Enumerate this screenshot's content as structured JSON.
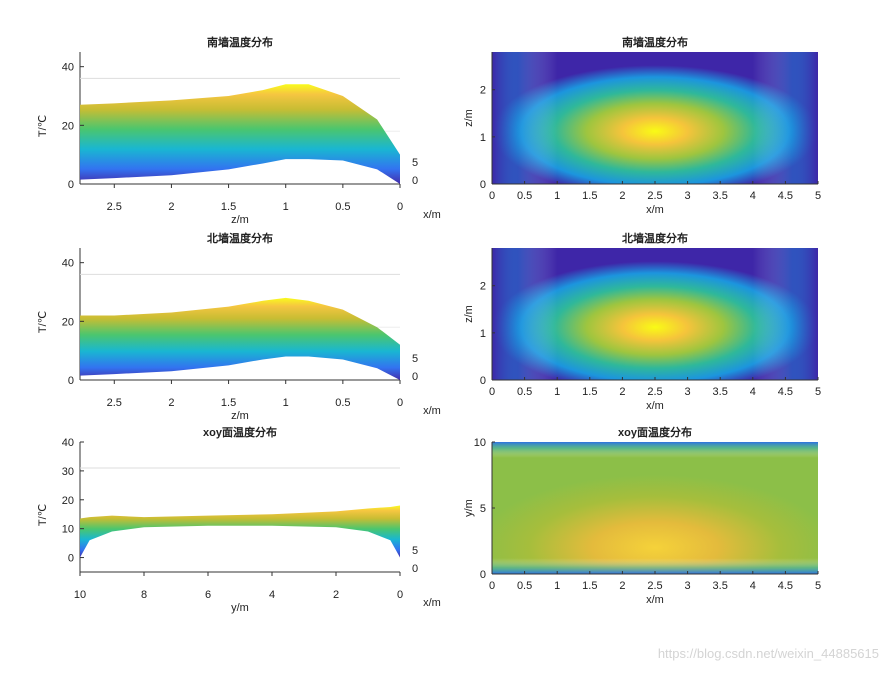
{
  "watermark": "https://blog.csdn.net/weixin_44885615",
  "chart_data": [
    {
      "type": "surface",
      "title": "南墙温度分布",
      "xlabel": "z/m",
      "ylabel": "T/℃",
      "depth_label": "x/m",
      "x_ticks": [
        "2.5",
        "2",
        "1.5",
        "1",
        "0.5",
        "0"
      ],
      "y_ticks": [
        "0",
        "20",
        "40"
      ],
      "depth_ticks": [
        "0",
        "5"
      ],
      "xlim": [
        0,
        2.8
      ],
      "ylim": [
        0,
        45
      ],
      "profile_z": [
        0,
        0.2,
        0.5,
        0.8,
        1.0,
        1.2,
        1.5,
        2.0,
        2.5,
        2.8
      ],
      "top_T": [
        10,
        22,
        30,
        34,
        34,
        32,
        30,
        28.5,
        27.5,
        27
      ],
      "bottom_T": [
        0,
        5,
        8,
        8.5,
        8.5,
        7,
        5,
        3,
        2,
        1.5
      ]
    },
    {
      "type": "heatmap",
      "title": "南墙温度分布",
      "xlabel": "x/m",
      "ylabel": "z/m",
      "x_ticks": [
        "0",
        "0.5",
        "1",
        "1.5",
        "2",
        "2.5",
        "3",
        "3.5",
        "4",
        "4.5",
        "5"
      ],
      "y_ticks": [
        "0",
        "1",
        "2"
      ],
      "xlim": [
        0,
        5
      ],
      "ylim": [
        0,
        2.8
      ],
      "hot_spot": [
        2.5,
        1.0
      ],
      "colorbar": false
    },
    {
      "type": "surface",
      "title": "北墙温度分布",
      "xlabel": "z/m",
      "ylabel": "T/℃",
      "depth_label": "x/m",
      "x_ticks": [
        "2.5",
        "2",
        "1.5",
        "1",
        "0.5",
        "0"
      ],
      "y_ticks": [
        "0",
        "20",
        "40"
      ],
      "depth_ticks": [
        "0",
        "5"
      ],
      "xlim": [
        0,
        2.8
      ],
      "ylim": [
        0,
        45
      ],
      "profile_z": [
        0,
        0.2,
        0.5,
        0.8,
        1.0,
        1.2,
        1.5,
        2.0,
        2.5,
        2.8
      ],
      "top_T": [
        12,
        18,
        24,
        27,
        28,
        27,
        25,
        23,
        22,
        22
      ],
      "bottom_T": [
        0,
        4,
        7,
        8,
        8,
        7,
        5,
        3,
        2,
        1.5
      ]
    },
    {
      "type": "heatmap",
      "title": "北墙温度分布",
      "xlabel": "x/m",
      "ylabel": "z/m",
      "x_ticks": [
        "0",
        "0.5",
        "1",
        "1.5",
        "2",
        "2.5",
        "3",
        "3.5",
        "4",
        "4.5",
        "5"
      ],
      "y_ticks": [
        "0",
        "1",
        "2"
      ],
      "xlim": [
        0,
        5
      ],
      "ylim": [
        0,
        2.8
      ],
      "hot_spot": [
        2.5,
        1.0
      ],
      "colorbar": false
    },
    {
      "type": "surface",
      "title": "xoy面温度分布",
      "xlabel": "y/m",
      "ylabel": "T/℃",
      "depth_label": "x/m",
      "x_ticks": [
        "10",
        "8",
        "6",
        "4",
        "2",
        "0"
      ],
      "y_ticks": [
        "0",
        "10",
        "20",
        "30",
        "40"
      ],
      "depth_ticks": [
        "0",
        "5"
      ],
      "xlim": [
        0,
        10
      ],
      "ylim": [
        -5,
        40
      ],
      "profile_y": [
        0,
        0.3,
        1,
        2,
        4,
        6,
        8,
        9,
        9.7,
        10
      ],
      "top_T": [
        18,
        17.5,
        17,
        16,
        15,
        14.5,
        14,
        14.5,
        14,
        13.5
      ],
      "bottom_T": [
        0,
        6,
        9,
        10.5,
        11,
        11,
        10.5,
        9,
        6,
        0
      ]
    },
    {
      "type": "heatmap",
      "title": "xoy面温度分布",
      "xlabel": "x/m",
      "ylabel": "y/m",
      "x_ticks": [
        "0",
        "0.5",
        "1",
        "1.5",
        "2",
        "2.5",
        "3",
        "3.5",
        "4",
        "4.5",
        "5"
      ],
      "y_ticks": [
        "0",
        "5",
        "10"
      ],
      "xlim": [
        0,
        5
      ],
      "ylim": [
        0,
        10
      ],
      "hot_spot": [
        2.5,
        2.0
      ],
      "colorbar": false
    }
  ]
}
